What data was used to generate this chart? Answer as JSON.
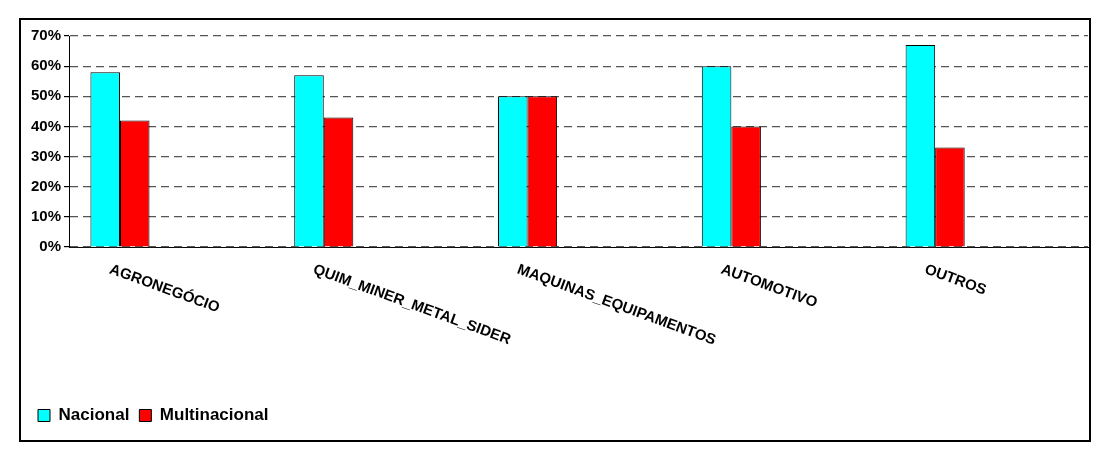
{
  "chart_data": {
    "type": "bar",
    "categories": [
      "AGRONEGÓCIO",
      null,
      "QUIM_MINER_METAL_SIDER",
      null,
      "MAQUINAS_EQUIPAMENTOS",
      null,
      "AUTOMOTIVO",
      null,
      "OUTROS",
      null
    ],
    "series": [
      {
        "name": "Nacional",
        "color": "#00ffff",
        "values": [
          58,
          null,
          57,
          null,
          50,
          null,
          60,
          null,
          67,
          null
        ]
      },
      {
        "name": "Multinacional",
        "color": "#ff0000",
        "values": [
          42,
          null,
          43,
          null,
          50,
          null,
          40,
          null,
          33,
          null
        ]
      }
    ],
    "ylim": [
      0,
      70
    ],
    "yticks": [
      {
        "value": 0,
        "label": "0%"
      },
      {
        "value": 10,
        "label": "10%"
      },
      {
        "value": 20,
        "label": "20%"
      },
      {
        "value": 30,
        "label": "30%"
      },
      {
        "value": 40,
        "label": "40%"
      },
      {
        "value": 50,
        "label": "50%"
      },
      {
        "value": 60,
        "label": "60%"
      },
      {
        "value": 70,
        "label": "70%"
      }
    ],
    "grid": "y",
    "legend": "bottom left"
  }
}
